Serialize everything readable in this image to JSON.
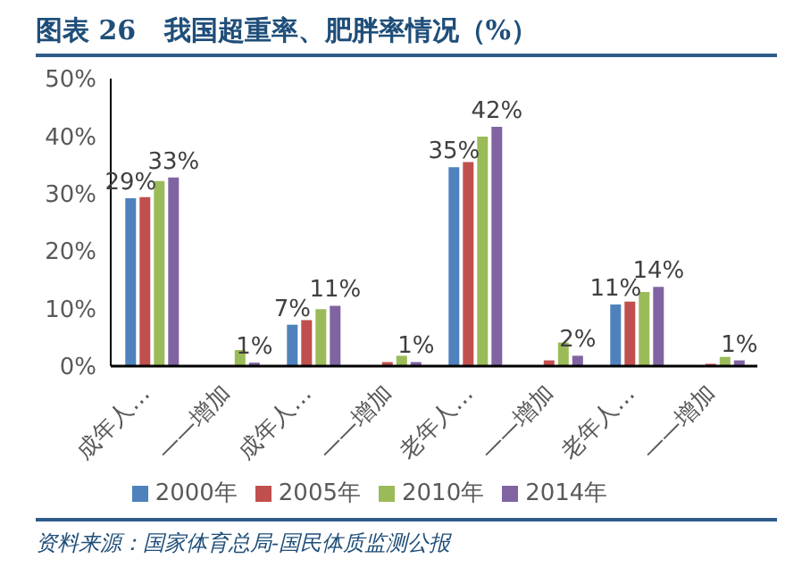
{
  "chart_data": {
    "type": "bar",
    "title": "图表 26   我国超重率、肥胖率情况（%）",
    "annotations": [
      "资料来源：国家体育总局-国民体质监测公报"
    ],
    "categories": [
      "成年人…",
      "——增加",
      "成年人…",
      "——增加",
      "老年人…",
      "——增加",
      "老年人…",
      "——增加"
    ],
    "series": [
      {
        "name": "2000年",
        "color": "#4f81bd",
        "values": [
          29.2,
          0,
          7.2,
          0,
          34.6,
          0,
          10.7,
          0
        ],
        "value_labels": [
          "29%",
          null,
          "7%",
          null,
          "35%",
          null,
          "11%",
          null
        ]
      },
      {
        "name": "2005年",
        "color": "#c0504d",
        "values": [
          29.4,
          0,
          8.0,
          0.7,
          35.5,
          1.0,
          11.2,
          0.4
        ],
        "value_labels": [
          null,
          null,
          null,
          null,
          null,
          null,
          null,
          null
        ]
      },
      {
        "name": "2010年",
        "color": "#9bbb59",
        "values": [
          32.2,
          2.8,
          9.9,
          1.8,
          39.9,
          4.1,
          12.9,
          1.6
        ],
        "value_labels": [
          null,
          null,
          null,
          null,
          null,
          null,
          null,
          null
        ]
      },
      {
        "name": "2014年",
        "color": "#8064a2",
        "values": [
          32.8,
          0.6,
          10.5,
          0.7,
          41.6,
          1.8,
          13.8,
          1.0
        ],
        "value_labels": [
          "33%",
          "1%",
          "11%",
          "1%",
          "42%",
          "2%",
          "14%",
          "1%"
        ]
      }
    ],
    "ylim": [
      0,
      50
    ],
    "yticks": [
      {
        "value": 0,
        "label": "0%"
      },
      {
        "value": 10,
        "label": "10%"
      },
      {
        "value": 20,
        "label": "20%"
      },
      {
        "value": 30,
        "label": "30%"
      },
      {
        "value": 40,
        "label": "40%"
      },
      {
        "value": 50,
        "label": "50%"
      }
    ],
    "grid": false,
    "legend": "bottom"
  }
}
